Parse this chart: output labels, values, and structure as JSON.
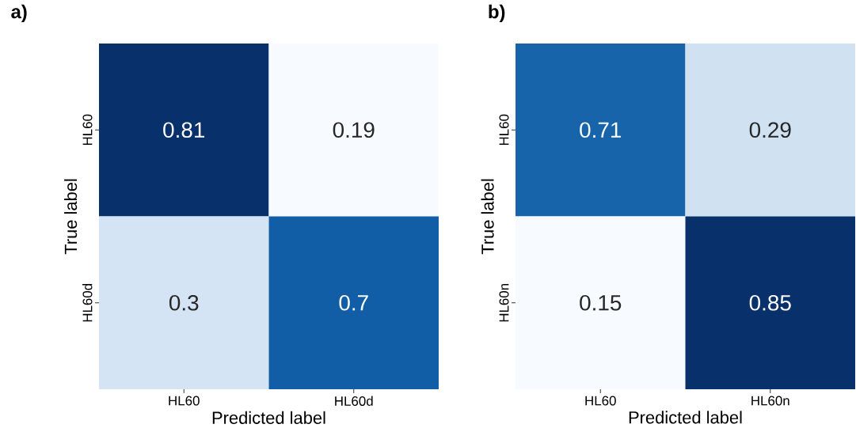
{
  "chart_data": [
    {
      "type": "heatmap",
      "title": "a)",
      "xlabel": "Predicted label",
      "ylabel": "True label",
      "categories": [
        "HL60",
        "HL60d"
      ],
      "y_categories": [
        "HL60",
        "HL60d"
      ],
      "cells": [
        [
          0.81,
          0.19
        ],
        [
          0.3,
          0.7
        ]
      ],
      "data_labels": true
    },
    {
      "type": "heatmap",
      "title": "b)",
      "xlabel": "Predicted label",
      "ylabel": "True label",
      "categories": [
        "HL60",
        "HL60n"
      ],
      "y_categories": [
        "HL60",
        "HL60n"
      ],
      "cells": [
        [
          0.71,
          0.29
        ],
        [
          0.15,
          0.85
        ]
      ],
      "data_labels": true
    }
  ]
}
